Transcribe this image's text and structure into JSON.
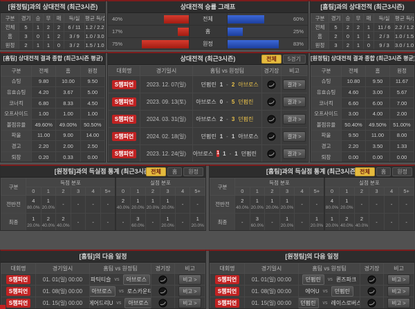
{
  "theme": {
    "accent_red": "#c12222",
    "bar_red": "#c4261d",
    "bar_blue": "#2e59c9",
    "win_yellow": "#e8c04a",
    "tab_active_bg": "#e5bb3e"
  },
  "record_left": {
    "title": "[원정팀]과의 상대전적 (최근3시즌)",
    "headers": [
      "구분",
      "경기",
      "승",
      "무",
      "패",
      "득/실",
      "평균 득/실"
    ],
    "rows": [
      {
        "label": "전체",
        "games": "5",
        "win": "1",
        "draw": "2",
        "loss": "2",
        "gf_ga": "6 / 11",
        "avg": "1.2 / 2.2"
      },
      {
        "label": "홈",
        "games": "3",
        "win": "0",
        "draw": "1",
        "loss": "2",
        "gf_ga": "3 / 9",
        "avg": "1.0 / 3.0"
      },
      {
        "label": "원정",
        "games": "2",
        "win": "1",
        "draw": "1",
        "loss": "0",
        "gf_ga": "3 / 2",
        "avg": "1.5 / 1.0"
      }
    ]
  },
  "winrate_graph": {
    "title": "상대전적 승률 그래프",
    "chart_data": {
      "type": "bar",
      "categories": [
        "전체",
        "홈",
        "원정"
      ],
      "series": [
        {
          "name": "홈팀 승률",
          "values": [
            40,
            17,
            75
          ],
          "color": "#c4261d"
        },
        {
          "name": "원정팀 승률",
          "values": [
            60,
            25,
            83
          ],
          "color": "#2e59c9"
        }
      ]
    },
    "rows": [
      {
        "label": "전체",
        "left_pct": "40%",
        "right_pct": "60%",
        "left_val": 40,
        "right_val": 60
      },
      {
        "label": "홈",
        "left_pct": "17%",
        "right_pct": "25%",
        "left_val": 17,
        "right_val": 25
      },
      {
        "label": "원정",
        "left_pct": "75%",
        "right_pct": "83%",
        "left_val": 75,
        "right_val": 83
      }
    ]
  },
  "record_right": {
    "title": "[홈팀]과의 상대전적 (최근3시즌)",
    "headers": [
      "구분",
      "경기",
      "승",
      "무",
      "패",
      "득/실",
      "평균 득/실"
    ],
    "rows": [
      {
        "label": "전체",
        "games": "5",
        "win": "2",
        "draw": "2",
        "loss": "1",
        "gf_ga": "11 / 6",
        "avg": "2.2 / 1.2"
      },
      {
        "label": "홈",
        "games": "2",
        "win": "0",
        "draw": "1",
        "loss": "1",
        "gf_ga": "2 / 3",
        "avg": "1.0 / 1.5"
      },
      {
        "label": "원정",
        "games": "3",
        "win": "2",
        "draw": "1",
        "loss": "0",
        "gf_ga": "9 / 3",
        "avg": "3.0 / 1.0"
      }
    ]
  },
  "stats_left": {
    "title": "[홈팀] 상대전적 결과 종합 (최근3시즌 평균)",
    "headers": [
      "구분",
      "전체",
      "홈",
      "원정"
    ],
    "rows": [
      {
        "label": "슈팅",
        "total": "9.80",
        "home": "10.00",
        "away": "9.50"
      },
      {
        "label": "유효슈팅",
        "total": "4.20",
        "home": "3.67",
        "away": "5.00"
      },
      {
        "label": "코너킥",
        "total": "6.80",
        "home": "8.33",
        "away": "4.50"
      },
      {
        "label": "오프사이드",
        "total": "1.00",
        "home": "1.00",
        "away": "1.00"
      },
      {
        "label": "볼점유율",
        "total": "49.60%",
        "home": "49.00%",
        "away": "50.50%"
      },
      {
        "label": "파울",
        "total": "11.00",
        "home": "9.00",
        "away": "14.00"
      },
      {
        "label": "경고",
        "total": "2.20",
        "home": "2.00",
        "away": "2.50"
      },
      {
        "label": "퇴장",
        "total": "0.20",
        "home": "0.33",
        "away": "0.00"
      }
    ]
  },
  "h2h_matches": {
    "title": "상대전적 (최근3시즌)",
    "tabs": [
      {
        "label": "전체",
        "active": true
      },
      {
        "label": "5경기",
        "active": false
      }
    ],
    "headers": {
      "competition": "대회명",
      "datetime": "경기일시",
      "teams": "홈팀 vs 원정팀",
      "stadium": "경기장",
      "note": "비고"
    },
    "score_separator": "-",
    "result_button": "결과 >",
    "rows": [
      {
        "badge": "S챔피언",
        "date": "2023. 12. 07(일)",
        "home": "던펌린",
        "home_score": "1",
        "away_score": "2",
        "away": "아브로스",
        "winner": "away",
        "home_red": ""
      },
      {
        "badge": "S챔피언",
        "date": "2023. 09. 13(토)",
        "home": "아브로스",
        "home_score": "0",
        "away_score": "5",
        "away": "던펌린",
        "winner": "away",
        "home_red": ""
      },
      {
        "badge": "S챔피언",
        "date": "2024. 03. 31(일)",
        "home": "아브로스",
        "home_score": "2",
        "away_score": "3",
        "away": "던펌린",
        "winner": "away",
        "home_red": ""
      },
      {
        "badge": "S챔피언",
        "date": "2024. 02. 18(일)",
        "home": "던펌린",
        "home_score": "1",
        "away_score": "1",
        "away": "아브로스",
        "winner": "draw",
        "home_red": ""
      },
      {
        "badge": "S챔피언",
        "date": "2023. 12. 24(일)",
        "home": "아브로스",
        "home_score": "1",
        "away_score": "1",
        "away": "던펌린",
        "winner": "draw",
        "home_red": "1"
      }
    ]
  },
  "stats_right": {
    "title": "[원정팀] 상대전적 결과 종합 (최근3시즌 평균)",
    "headers": [
      "구분",
      "전체",
      "홈",
      "원정"
    ],
    "rows": [
      {
        "label": "슈팅",
        "total": "10.80",
        "home": "9.50",
        "away": "11.67"
      },
      {
        "label": "유효슈팅",
        "total": "4.60",
        "home": "3.00",
        "away": "5.67"
      },
      {
        "label": "코너킥",
        "total": "6.60",
        "home": "6.00",
        "away": "7.00"
      },
      {
        "label": "오프사이드",
        "total": "3.00",
        "home": "4.00",
        "away": "2.00"
      },
      {
        "label": "볼점유율",
        "total": "50.40%",
        "home": "49.50%",
        "away": "51.00%"
      },
      {
        "label": "파울",
        "total": "9.50",
        "home": "11.00",
        "away": "8.00"
      },
      {
        "label": "경고",
        "total": "2.20",
        "home": "3.50",
        "away": "1.33"
      },
      {
        "label": "퇴장",
        "total": "0.00",
        "home": "0.00",
        "away": "0.00"
      }
    ]
  },
  "goals_left": {
    "title": "[원정팀]과의 득실점 통계 (최근3시즌)",
    "tabs": [
      {
        "label": "전체",
        "active": true
      },
      {
        "label": "홈",
        "active": false
      },
      {
        "label": "원정",
        "active": false
      }
    ],
    "col_label": "구분",
    "scored_header": "득점 분포",
    "conceded_header": "실점 분포",
    "bins": [
      "0",
      "1",
      "2",
      "3",
      "4",
      "5+"
    ],
    "rows": [
      {
        "label": "전반전",
        "cells": [
          {
            "n": "4",
            "p": "80.0%"
          },
          {
            "n": "1",
            "p": "20.0%"
          },
          {
            "n": "-",
            "p": ""
          },
          {
            "n": "-",
            "p": ""
          },
          {
            "n": "-",
            "p": ""
          },
          {
            "n": "-",
            "p": ""
          },
          {
            "n": "2",
            "p": "40.0%"
          },
          {
            "n": "1",
            "p": "20.0%"
          },
          {
            "n": "1",
            "p": "20.0%"
          },
          {
            "n": "1",
            "p": "20.0%"
          },
          {
            "n": "-",
            "p": ""
          },
          {
            "n": "-",
            "p": ""
          }
        ]
      },
      {
        "label": "최종",
        "cells": [
          {
            "n": "1",
            "p": "20.0%"
          },
          {
            "n": "2",
            "p": "40.0%"
          },
          {
            "n": "2",
            "p": "40.0%"
          },
          {
            "n": "-",
            "p": ""
          },
          {
            "n": "-",
            "p": ""
          },
          {
            "n": "-",
            "p": ""
          },
          {
            "n": "-",
            "p": ""
          },
          {
            "n": "3",
            "p": "60.0%"
          },
          {
            "n": "-",
            "p": ""
          },
          {
            "n": "1",
            "p": "20.0%"
          },
          {
            "n": "-",
            "p": ""
          },
          {
            "n": "1",
            "p": "20.0%"
          }
        ]
      }
    ]
  },
  "goals_right": {
    "title": "[홈팀]과의 득실점 통계 (최근3시즌)",
    "tabs": [
      {
        "label": "전체",
        "active": true
      },
      {
        "label": "홈",
        "active": false
      },
      {
        "label": "원정",
        "active": false
      }
    ],
    "col_label": "구분",
    "scored_header": "득점 분포",
    "conceded_header": "실점 분포",
    "bins": [
      "0",
      "1",
      "2",
      "3",
      "4",
      "5+"
    ],
    "rows": [
      {
        "label": "전반전",
        "cells": [
          {
            "n": "2",
            "p": "40.0%"
          },
          {
            "n": "1",
            "p": "20.0%"
          },
          {
            "n": "1",
            "p": "20.0%"
          },
          {
            "n": "1",
            "p": "20.0%"
          },
          {
            "n": "-",
            "p": ""
          },
          {
            "n": "-",
            "p": ""
          },
          {
            "n": "4",
            "p": "80.0%"
          },
          {
            "n": "1",
            "p": "20.0%"
          },
          {
            "n": "-",
            "p": ""
          },
          {
            "n": "-",
            "p": ""
          },
          {
            "n": "-",
            "p": ""
          },
          {
            "n": "-",
            "p": ""
          }
        ]
      },
      {
        "label": "최종",
        "cells": [
          {
            "n": "-",
            "p": ""
          },
          {
            "n": "3",
            "p": "60.0%"
          },
          {
            "n": "-",
            "p": ""
          },
          {
            "n": "1",
            "p": "20.0%"
          },
          {
            "n": "-",
            "p": ""
          },
          {
            "n": "1",
            "p": "20.0%"
          },
          {
            "n": "1",
            "p": "20.0%"
          },
          {
            "n": "2",
            "p": "40.0%"
          },
          {
            "n": "2",
            "p": "40.0%"
          },
          {
            "n": "-",
            "p": ""
          },
          {
            "n": "-",
            "p": ""
          },
          {
            "n": "-",
            "p": ""
          }
        ]
      }
    ]
  },
  "schedule_left": {
    "title": "[홈팀]의 다음 일정",
    "headers": {
      "competition": "대회명",
      "datetime": "경기일시",
      "teams": "홈팀 vs 원정팀",
      "stadium": "경기장",
      "note": "비고"
    },
    "vs_label": "vs",
    "note_button": "비고 >",
    "rows": [
      {
        "badge": "S챔피언",
        "date": "01. 01(일) 00:00",
        "home": "파틱티슬",
        "away": "아브로스",
        "hl": "away"
      },
      {
        "badge": "S챔피언",
        "date": "01. 08(일) 00:00",
        "home": "아브로스",
        "away": "로스카운티",
        "hl": "home"
      },
      {
        "badge": "S챔피언",
        "date": "01. 15(일) 00:00",
        "home": "에어드리U",
        "away": "아브로스",
        "hl": "away"
      }
    ]
  },
  "schedule_right": {
    "title": "[원정팀]의 다음 일정",
    "headers": {
      "competition": "대회명",
      "datetime": "경기일시",
      "teams": "홈팀 vs 원정팀",
      "stadium": "경기장",
      "note": "비고"
    },
    "vs_label": "vs",
    "note_button": "비고 >",
    "rows": [
      {
        "badge": "S챔피언",
        "date": "01. 01(일) 00:00",
        "home": "던펌린",
        "away": "퀸즈파크",
        "hl": "home"
      },
      {
        "badge": "S챔피언",
        "date": "01. 08(일) 00:00",
        "home": "에어U",
        "away": "던펌린",
        "hl": "away"
      },
      {
        "badge": "S챔피언",
        "date": "01. 15(일) 00:00",
        "home": "던펌린",
        "away": "레이스로버스",
        "hl": "home"
      }
    ]
  }
}
